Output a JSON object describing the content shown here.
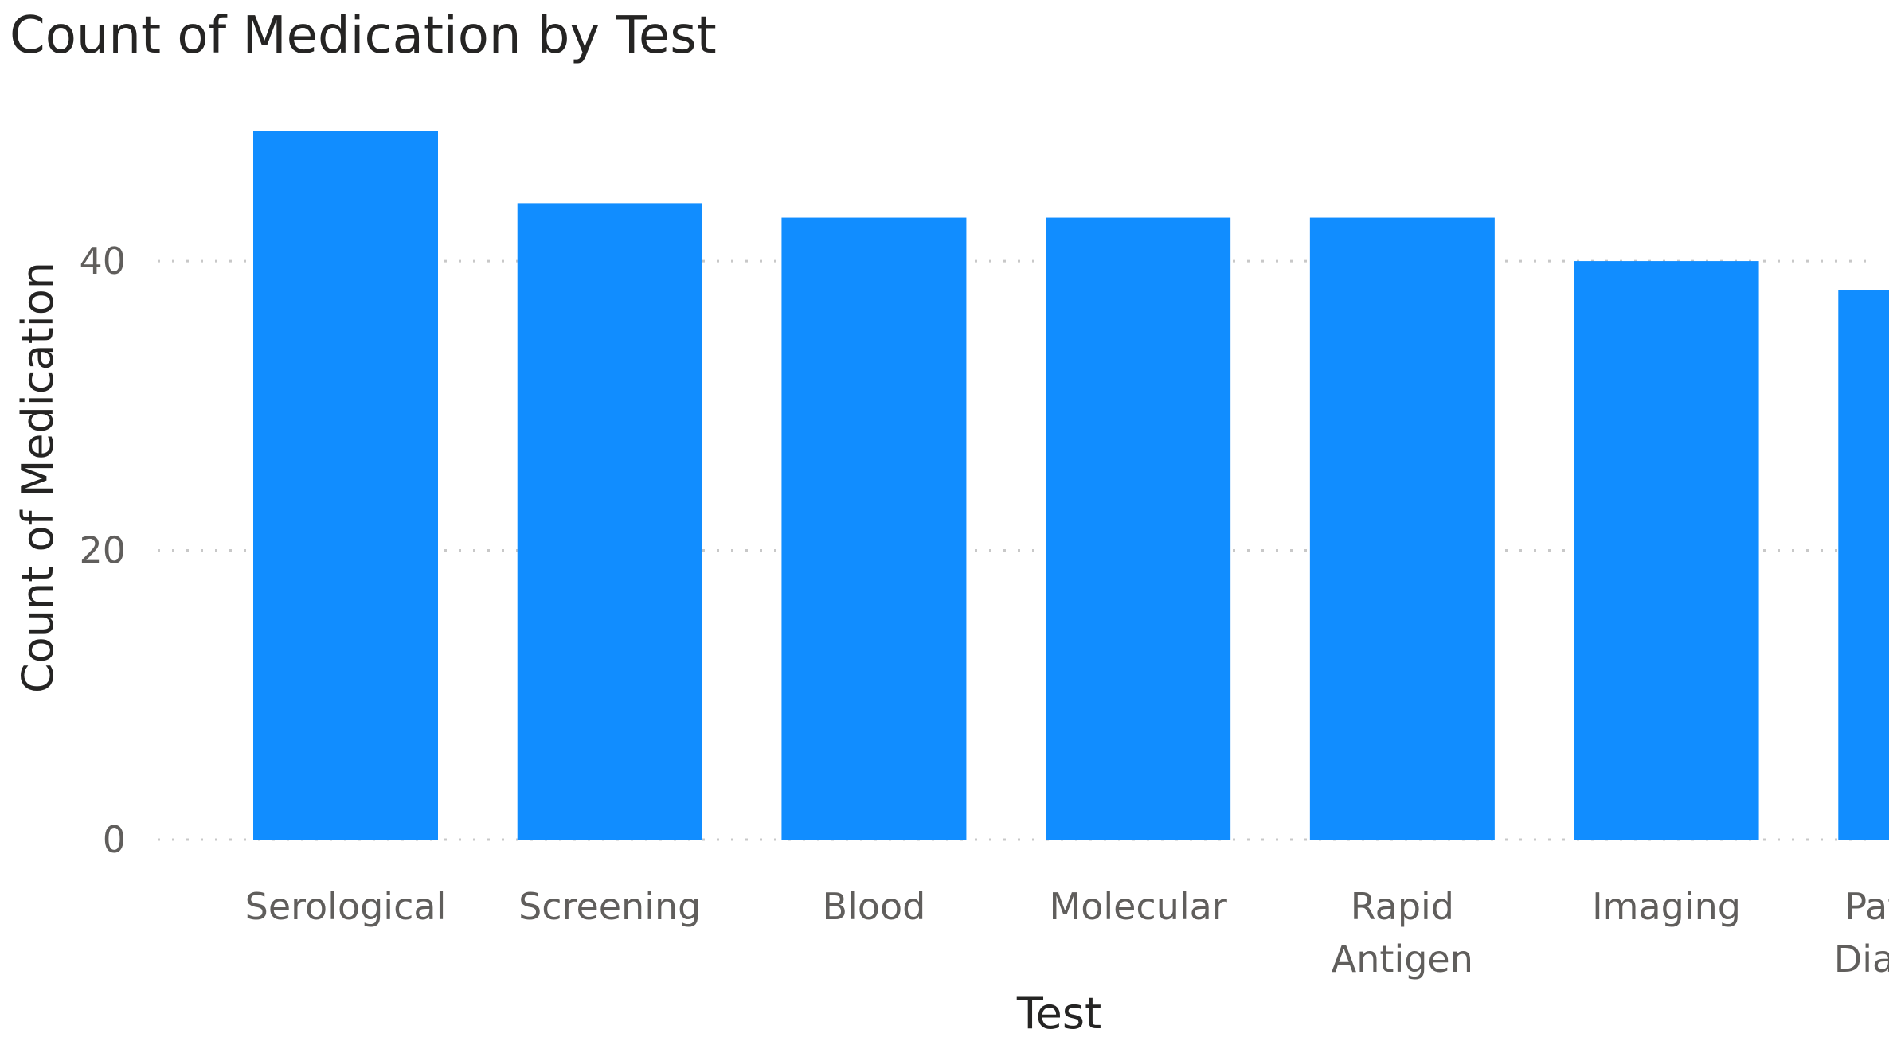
{
  "chart_data": {
    "type": "bar",
    "title": "Count of Medication by Test",
    "xlabel": "Test",
    "ylabel": "Count of Medication",
    "categories": [
      [
        "Serological"
      ],
      [
        "Screening"
      ],
      [
        "Blood"
      ],
      [
        "Molecular"
      ],
      [
        "Rapid",
        "Antigen"
      ],
      [
        "Imaging"
      ],
      [
        "Pathogen",
        "Diagnostic"
      ]
    ],
    "values": [
      49,
      44,
      43,
      43,
      43,
      40,
      38
    ],
    "yticks": [
      0,
      20,
      40
    ],
    "ylim": [
      0,
      52
    ],
    "grid": true,
    "bar_color": "#118DFF",
    "grid_color": "#c8c8c8",
    "tick_color": "#605E5C",
    "label_color": "#252423"
  }
}
